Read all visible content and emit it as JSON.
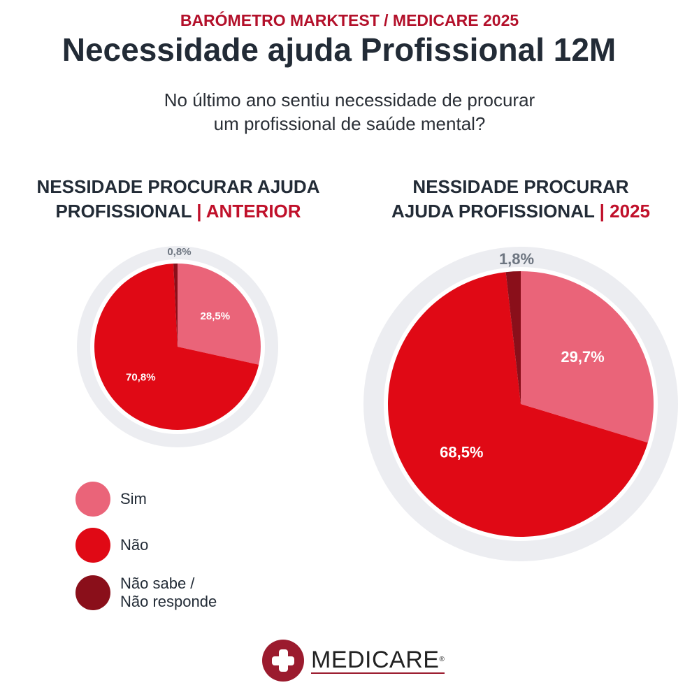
{
  "header": {
    "kicker": "BARÓMETRO MARKTEST / MEDICARE 2025",
    "title": "Necessidade ajuda Profissional 12M",
    "question_line1": "No último ano sentiu necessidade de procurar",
    "question_line2": "um profissional de saúde mental?"
  },
  "colors": {
    "sim": "#ea6479",
    "nao": "#e00915",
    "ns": "#8a0f1a",
    "ring": "#ecedf1",
    "accent": "#c0102a"
  },
  "chart_data": [
    {
      "type": "pie",
      "title_line1": "NESSIDADE PROCURAR AJUDA",
      "title_line2": "PROFISSIONAL",
      "title_highlight": "| ANTERIOR",
      "categories": [
        "Sim",
        "Não",
        "Não sabe / Não responde"
      ],
      "values": [
        28.5,
        70.8,
        0.8
      ],
      "labels": [
        "28,5%",
        "70,8%",
        "0,8%"
      ]
    },
    {
      "type": "pie",
      "title_line1": "NESSIDADE PROCURAR",
      "title_line2": "AJUDA PROFISSIONAL",
      "title_highlight": "| 2025",
      "categories": [
        "Sim",
        "Não",
        "Não sabe / Não responde"
      ],
      "values": [
        29.7,
        68.5,
        1.8
      ],
      "labels": [
        "29,7%",
        "68,5%",
        "1,8%"
      ]
    }
  ],
  "legend": [
    {
      "label": "Sim"
    },
    {
      "label": "Não"
    },
    {
      "label_line1": "Não sabe /",
      "label_line2": "Não responde"
    }
  ],
  "logo": {
    "text": "MEDICARE",
    "reg": "®"
  }
}
